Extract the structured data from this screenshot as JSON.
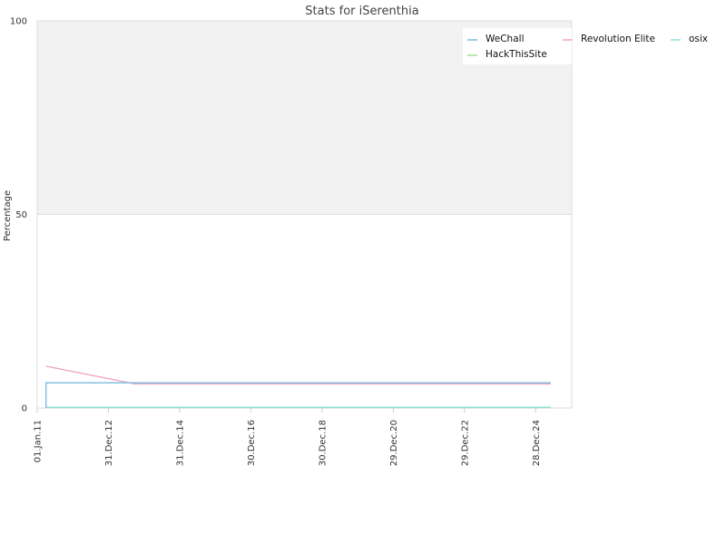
{
  "chart_data": {
    "type": "line",
    "title": "Stats for iSerenthia",
    "xlabel": "",
    "ylabel": "Percentage",
    "ylim": [
      0,
      100
    ],
    "yticks": [
      0,
      50,
      100
    ],
    "xlim": [
      "2011-01-01",
      "2026-01-01"
    ],
    "xtick_labels": [
      "01.Jan.11",
      "31.Dec.12",
      "31.Dec.14",
      "30.Dec.16",
      "30.Dec.18",
      "29.Dec.20",
      "29.Dec.22",
      "28.Dec.24"
    ],
    "xticks": [
      "2011-01-01",
      "2012-12-31",
      "2014-12-31",
      "2016-12-30",
      "2018-12-30",
      "2020-12-29",
      "2022-12-29",
      "2024-12-28"
    ],
    "grid": true,
    "shaded_band": [
      50,
      100
    ],
    "legend": "top-right",
    "series": [
      {
        "name": "WeChall",
        "color": "#7ab8e0",
        "x": [
          "2011-04-01",
          "2011-04-01",
          "2013-06-01",
          "2025-06-01"
        ],
        "y": [
          0,
          6.5,
          6.5,
          6.5
        ]
      },
      {
        "name": "Revolution Elite",
        "color": "#f0a2c2",
        "x": [
          "2011-04-01",
          "2013-10-01",
          "2025-06-01"
        ],
        "y": [
          10.8,
          6.2,
          6.2
        ]
      },
      {
        "name": "osix",
        "color": "#8de0e0",
        "x": [
          "2011-04-01",
          "2025-06-01"
        ],
        "y": [
          0.2,
          0.2
        ]
      },
      {
        "name": "HackThisSite",
        "color": "#a6dd96",
        "x": [
          "2011-04-01",
          "2025-06-01"
        ],
        "y": [
          0.1,
          0.1
        ]
      }
    ]
  }
}
